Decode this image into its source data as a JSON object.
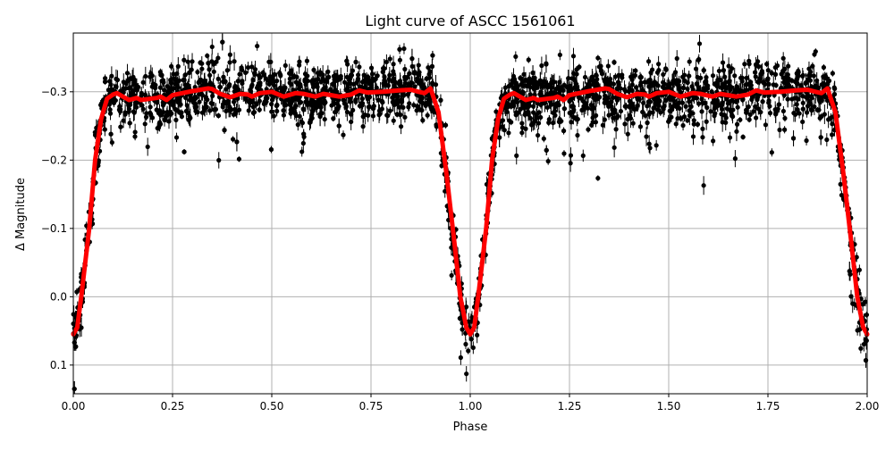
{
  "chart_data": {
    "type": "scatter",
    "title": "Light curve of ASCC 1561061",
    "xlabel": "Phase",
    "ylabel": "Δ Magnitude",
    "xlim": [
      0.0,
      2.0
    ],
    "ylim": [
      0.142,
      -0.386
    ],
    "y_inverted": true,
    "grid": true,
    "xticks": [
      "0.00",
      "0.25",
      "0.50",
      "0.75",
      "1.00",
      "1.25",
      "1.50",
      "1.75",
      "2.00"
    ],
    "xtick_values": [
      0,
      0.25,
      0.5,
      0.75,
      1.0,
      1.25,
      1.5,
      1.75,
      2.0
    ],
    "yticks": [
      "−0.3",
      "−0.2",
      "−0.1",
      "0.0",
      "0.1"
    ],
    "ytick_values": [
      -0.3,
      -0.2,
      -0.1,
      0.0,
      0.1
    ],
    "series": [
      {
        "kind": "observations",
        "marker": "dot-with-error-bars",
        "color": "#000000",
        "typical_scatter": 0.025
      },
      {
        "kind": "model",
        "marker": "line",
        "color": "#ff0000",
        "x": [
          0,
          0.01,
          0.02,
          0.04,
          0.055,
          0.07,
          0.085,
          0.1,
          0.11,
          0.14,
          0.16,
          0.17,
          0.21,
          0.22,
          0.235,
          0.25,
          0.3,
          0.34,
          0.35,
          0.37,
          0.395,
          0.42,
          0.44,
          0.45,
          0.47,
          0.5,
          0.53,
          0.56,
          0.58,
          0.61,
          0.63,
          0.65,
          0.67,
          0.7,
          0.72,
          0.74,
          0.78,
          0.82,
          0.85,
          0.87,
          0.885,
          0.9,
          0.92,
          0.94,
          0.96,
          0.975,
          0.99,
          1.0,
          1.01,
          1.02,
          1.04,
          1.055,
          1.07,
          1.085,
          1.1,
          1.11,
          1.14,
          1.16,
          1.17,
          1.21,
          1.22,
          1.235,
          1.25,
          1.3,
          1.34,
          1.35,
          1.37,
          1.395,
          1.42,
          1.44,
          1.45,
          1.47,
          1.5,
          1.53,
          1.56,
          1.58,
          1.61,
          1.63,
          1.65,
          1.67,
          1.7,
          1.72,
          1.74,
          1.78,
          1.82,
          1.85,
          1.87,
          1.885,
          1.9,
          1.92,
          1.94,
          1.96,
          1.975,
          1.99,
          2.0
        ],
        "y": [
          0.055,
          0.045,
          0.0,
          -0.1,
          -0.2,
          -0.26,
          -0.29,
          -0.296,
          -0.298,
          -0.288,
          -0.291,
          -0.288,
          -0.291,
          -0.293,
          -0.288,
          -0.295,
          -0.301,
          -0.305,
          -0.304,
          -0.297,
          -0.292,
          -0.297,
          -0.296,
          -0.293,
          -0.298,
          -0.3,
          -0.293,
          -0.298,
          -0.297,
          -0.293,
          -0.297,
          -0.295,
          -0.293,
          -0.296,
          -0.302,
          -0.299,
          -0.3,
          -0.302,
          -0.303,
          -0.3,
          -0.298,
          -0.305,
          -0.27,
          -0.18,
          -0.08,
          0.0,
          0.045,
          0.055,
          0.045,
          0.0,
          -0.1,
          -0.2,
          -0.26,
          -0.29,
          -0.296,
          -0.298,
          -0.288,
          -0.291,
          -0.288,
          -0.291,
          -0.293,
          -0.288,
          -0.295,
          -0.301,
          -0.305,
          -0.304,
          -0.297,
          -0.292,
          -0.297,
          -0.296,
          -0.293,
          -0.298,
          -0.3,
          -0.293,
          -0.298,
          -0.297,
          -0.293,
          -0.297,
          -0.295,
          -0.293,
          -0.296,
          -0.302,
          -0.299,
          -0.3,
          -0.302,
          -0.303,
          -0.3,
          -0.298,
          -0.305,
          -0.27,
          -0.18,
          -0.08,
          0.0,
          0.045,
          0.055
        ]
      }
    ]
  }
}
